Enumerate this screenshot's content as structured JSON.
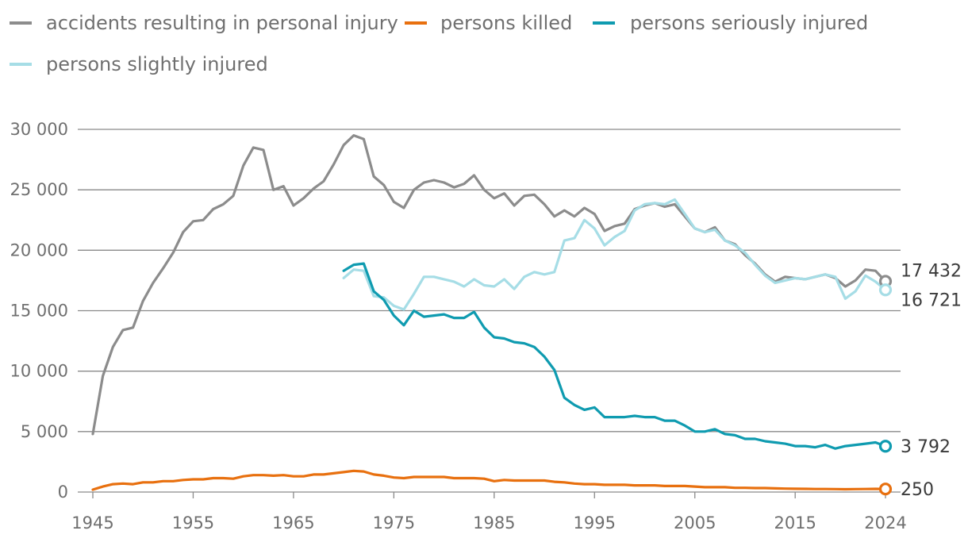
{
  "chart_data": {
    "type": "line",
    "xlim": [
      1945,
      2024
    ],
    "ylim": [
      0,
      30000
    ],
    "y_ticks": [
      0,
      5000,
      10000,
      15000,
      20000,
      25000,
      30000
    ],
    "y_tick_labels": [
      "0",
      "5 000",
      "10 000",
      "15 000",
      "20 000",
      "25 000",
      "30 000"
    ],
    "x_ticks": [
      1945,
      1955,
      1965,
      1975,
      1985,
      1995,
      2005,
      2015,
      2024
    ],
    "x_tick_labels": [
      "1945",
      "1955",
      "1965",
      "1975",
      "1985",
      "1995",
      "2005",
      "2015",
      "2024"
    ],
    "grid": "horizontal",
    "legend_position": "top-left",
    "series": [
      {
        "name": "accidents resulting in personal injury",
        "color": "#8c8c8c",
        "x_start": 1945,
        "values": [
          4800,
          9600,
          12000,
          13400,
          13600,
          15800,
          17300,
          18500,
          19800,
          21500,
          22400,
          22500,
          23400,
          23800,
          24500,
          27000,
          28500,
          28300,
          25000,
          25300,
          23700,
          24300,
          25100,
          25700,
          27100,
          28700,
          29500,
          29200,
          26100,
          25400,
          24000,
          23500,
          25000,
          25600,
          25800,
          25600,
          25200,
          25500,
          26200,
          25000,
          24300,
          24700,
          23700,
          24500,
          24600,
          23800,
          22800,
          23300,
          22800,
          23500,
          23000,
          21600,
          22000,
          22200,
          23400,
          23700,
          23900,
          23600,
          23800,
          22800,
          21800,
          21500,
          21900,
          20800,
          20500,
          19600,
          18900,
          18000,
          17400,
          17800,
          17700,
          17600,
          17800,
          18000,
          17700,
          17000,
          17500,
          18400,
          18300,
          17432
        ],
        "end_label": "17 432"
      },
      {
        "name": "persons killed",
        "color": "#e8700f",
        "x_start": 1945,
        "values": [
          200,
          450,
          650,
          700,
          650,
          800,
          800,
          900,
          900,
          1000,
          1050,
          1050,
          1150,
          1150,
          1100,
          1300,
          1400,
          1400,
          1350,
          1400,
          1300,
          1300,
          1450,
          1450,
          1550,
          1650,
          1750,
          1700,
          1450,
          1350,
          1200,
          1150,
          1250,
          1250,
          1250,
          1250,
          1150,
          1150,
          1150,
          1100,
          900,
          1000,
          950,
          950,
          950,
          950,
          850,
          800,
          700,
          650,
          650,
          600,
          600,
          600,
          550,
          550,
          550,
          500,
          500,
          500,
          450,
          400,
          400,
          400,
          350,
          350,
          330,
          330,
          300,
          280,
          270,
          260,
          250,
          250,
          240,
          230,
          240,
          250,
          260,
          250
        ],
        "end_label": "250"
      },
      {
        "name": "persons seriously injured",
        "color": "#0f9bb0",
        "x_start": 1970,
        "values": [
          18300,
          18800,
          18900,
          16600,
          15900,
          14600,
          13800,
          15000,
          14500,
          14600,
          14700,
          14400,
          14400,
          14900,
          13600,
          12800,
          12700,
          12400,
          12300,
          12000,
          11200,
          10100,
          7800,
          7200,
          6800,
          7000,
          6200,
          6200,
          6200,
          6300,
          6200,
          6200,
          5900,
          5900,
          5500,
          5000,
          5000,
          5200,
          4800,
          4700,
          4400,
          4400,
          4200,
          4100,
          4000,
          3800,
          3800,
          3700,
          3900,
          3600,
          3800,
          3900,
          4000,
          4100,
          3792
        ],
        "end_label": "3 792"
      },
      {
        "name": "persons slightly injured",
        "color": "#a6dde6",
        "x_start": 1970,
        "values": [
          17700,
          18400,
          18300,
          16200,
          16100,
          15400,
          15100,
          16400,
          17800,
          17800,
          17600,
          17400,
          17000,
          17600,
          17100,
          17000,
          17600,
          16800,
          17800,
          18200,
          18000,
          18200,
          20800,
          21000,
          22500,
          21800,
          20400,
          21100,
          21600,
          23300,
          23800,
          23900,
          23800,
          24200,
          23000,
          21800,
          21500,
          21700,
          20800,
          20400,
          19800,
          18800,
          17900,
          17300,
          17500,
          17700,
          17600,
          17800,
          18000,
          17800,
          16000,
          16600,
          17900,
          17400,
          16721
        ],
        "end_label": "16 721"
      }
    ]
  }
}
